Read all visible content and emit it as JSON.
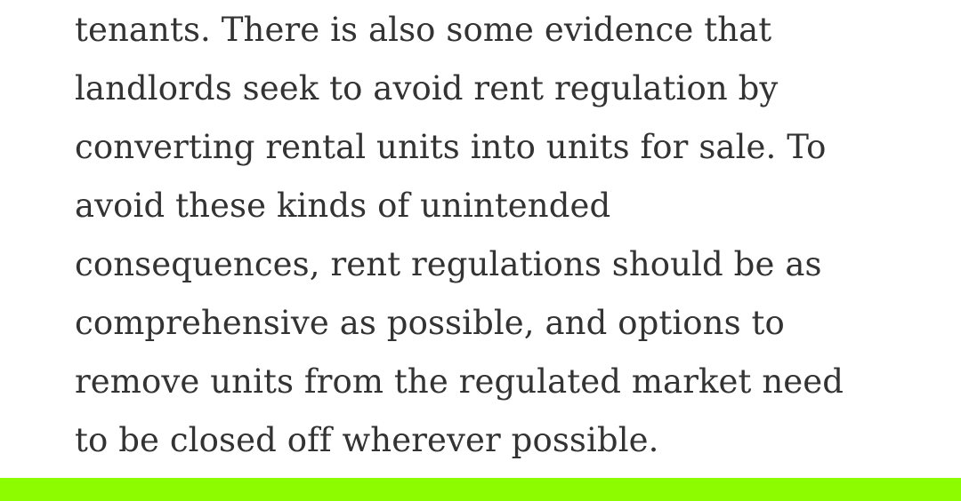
{
  "article": {
    "lines": [
      "tenants. There is also some evidence that",
      "landlords seek to avoid rent regulation by",
      "converting rental units into units for sale. To",
      "avoid these kinds of unintended",
      "consequences, rent regulations should be as",
      "comprehensive as possible, and options to",
      "remove units from the regulated market need",
      "to be closed off wherever possible."
    ]
  },
  "colors": {
    "text": "#333333",
    "background": "#ffffff",
    "accent_bar": "#8efc00"
  }
}
